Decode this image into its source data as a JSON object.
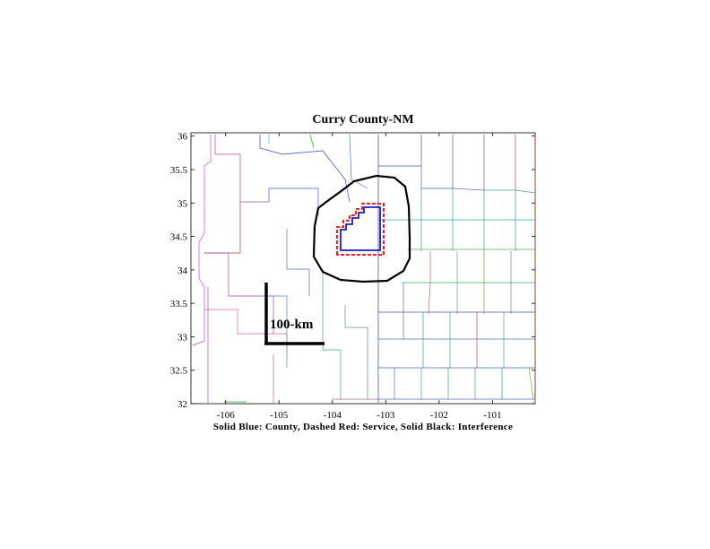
{
  "title": "Curry County-NM",
  "caption": "Solid Blue: County, Dashed Red: Service, Solid Black: Interference",
  "scale_bar_label": "100-km",
  "axes": {
    "x_ticks": [
      -106,
      -105,
      -104,
      -103,
      -102,
      -101
    ],
    "y_ticks": [
      "36",
      "35.5",
      "35",
      "34.5",
      "34",
      "33.5",
      "33",
      "32.5",
      "32"
    ],
    "xlim": [
      -106.65,
      -100.2
    ],
    "ylim": [
      32,
      36.05
    ]
  },
  "colors": {
    "county": "#1f1fbf",
    "service": "#ff0000",
    "interference": "#000000"
  }
}
